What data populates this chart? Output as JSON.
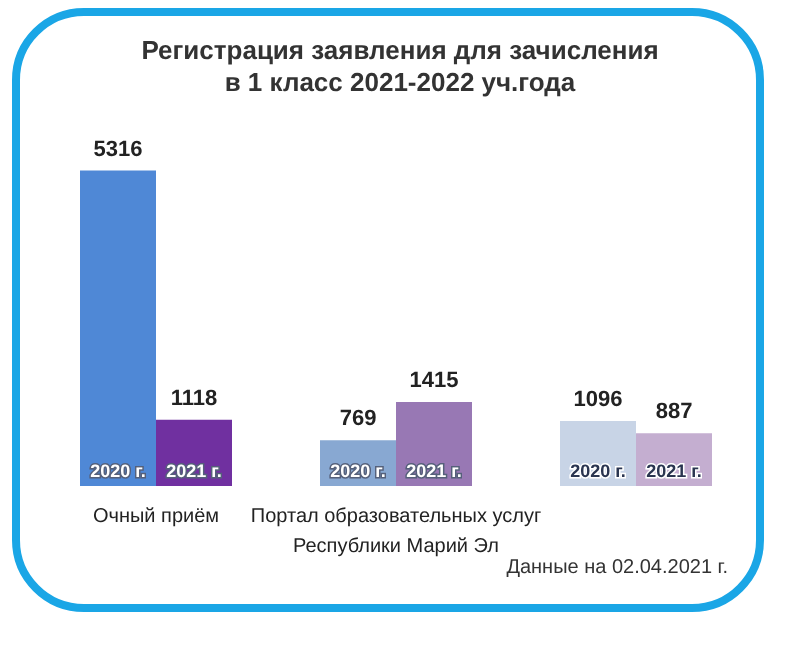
{
  "chart_data": {
    "type": "bar",
    "title": "Регистрация заявления для зачисления\nв 1 класс 2021-2022 уч.года",
    "categories": [
      "Очный приём",
      "Портал образовательных услуг\nРеспублики Марий Эл",
      null
    ],
    "series": [
      {
        "name": "2020 г.",
        "colors": [
          "#4f88d6",
          "#88a8d2",
          "#c8d4e6"
        ],
        "values": [
          5316,
          769,
          1096
        ]
      },
      {
        "name": "2021 г.",
        "colors": [
          "#7030a0",
          "#9878b4",
          "#c4aed0"
        ],
        "values": [
          1118,
          1415,
          887
        ]
      }
    ],
    "data_labels": true,
    "annotations": [
      "Данные на 02.04.2021 г."
    ]
  }
}
